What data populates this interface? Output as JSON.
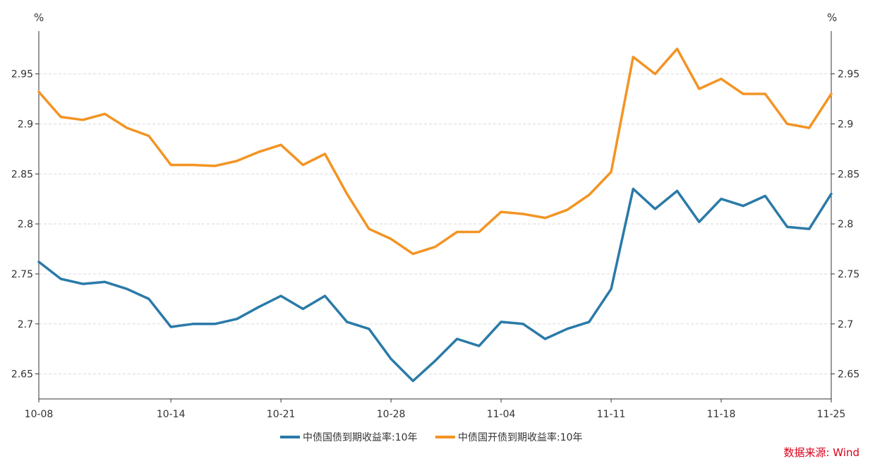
{
  "chart_data": {
    "type": "line",
    "left_axis_unit": "%",
    "right_axis_unit": "%",
    "ylim": [
      2.625,
      2.99
    ],
    "y_ticks": [
      {
        "value": 2.65,
        "label": "2.65"
      },
      {
        "value": 2.7,
        "label": "2.7"
      },
      {
        "value": 2.75,
        "label": "2.75"
      },
      {
        "value": 2.8,
        "label": "2.8"
      },
      {
        "value": 2.85,
        "label": "2.85"
      },
      {
        "value": 2.9,
        "label": "2.9"
      },
      {
        "value": 2.95,
        "label": "2.95"
      }
    ],
    "x_ticks": [
      "10-08",
      "10-14",
      "10-21",
      "10-28",
      "11-04",
      "11-11",
      "11-18",
      "11-25"
    ],
    "grid": true,
    "legend_position": "bottom-center",
    "x": [
      "10-08",
      "10-09",
      "10-10",
      "10-11",
      "10-12",
      "10-13",
      "10-14",
      "10-17",
      "10-18",
      "10-19",
      "10-20",
      "10-21",
      "10-24",
      "10-25",
      "10-26",
      "10-27",
      "10-28",
      "10-31",
      "11-01",
      "11-02",
      "11-03",
      "11-04",
      "11-07",
      "11-08",
      "11-09",
      "11-10",
      "11-11",
      "11-14",
      "11-15",
      "11-16",
      "11-17",
      "11-18",
      "11-21",
      "11-22",
      "11-23",
      "11-24",
      "11-25"
    ],
    "series": [
      {
        "name": "中债国债到期收益率:10年",
        "color": "#2a7aa8",
        "values": [
          2.762,
          2.745,
          2.74,
          2.742,
          2.735,
          2.725,
          2.697,
          2.7,
          2.7,
          2.705,
          2.717,
          2.728,
          2.715,
          2.728,
          2.702,
          2.695,
          2.665,
          2.643,
          2.663,
          2.685,
          2.678,
          2.702,
          2.7,
          2.685,
          2.695,
          2.702,
          2.735,
          2.835,
          2.815,
          2.833,
          2.802,
          2.825,
          2.818,
          2.828,
          2.797,
          2.795,
          2.83
        ]
      },
      {
        "name": "中债国开债到期收益率:10年",
        "color": "#f39423",
        "values": [
          2.932,
          2.907,
          2.904,
          2.91,
          2.896,
          2.888,
          2.859,
          2.859,
          2.858,
          2.863,
          2.872,
          2.879,
          2.859,
          2.87,
          2.83,
          2.795,
          2.785,
          2.77,
          2.777,
          2.792,
          2.792,
          2.812,
          2.81,
          2.806,
          2.814,
          2.829,
          2.852,
          2.967,
          2.95,
          2.975,
          2.935,
          2.945,
          2.93,
          2.93,
          2.9,
          2.896,
          2.93
        ]
      }
    ]
  },
  "source": "数据来源: Wind"
}
